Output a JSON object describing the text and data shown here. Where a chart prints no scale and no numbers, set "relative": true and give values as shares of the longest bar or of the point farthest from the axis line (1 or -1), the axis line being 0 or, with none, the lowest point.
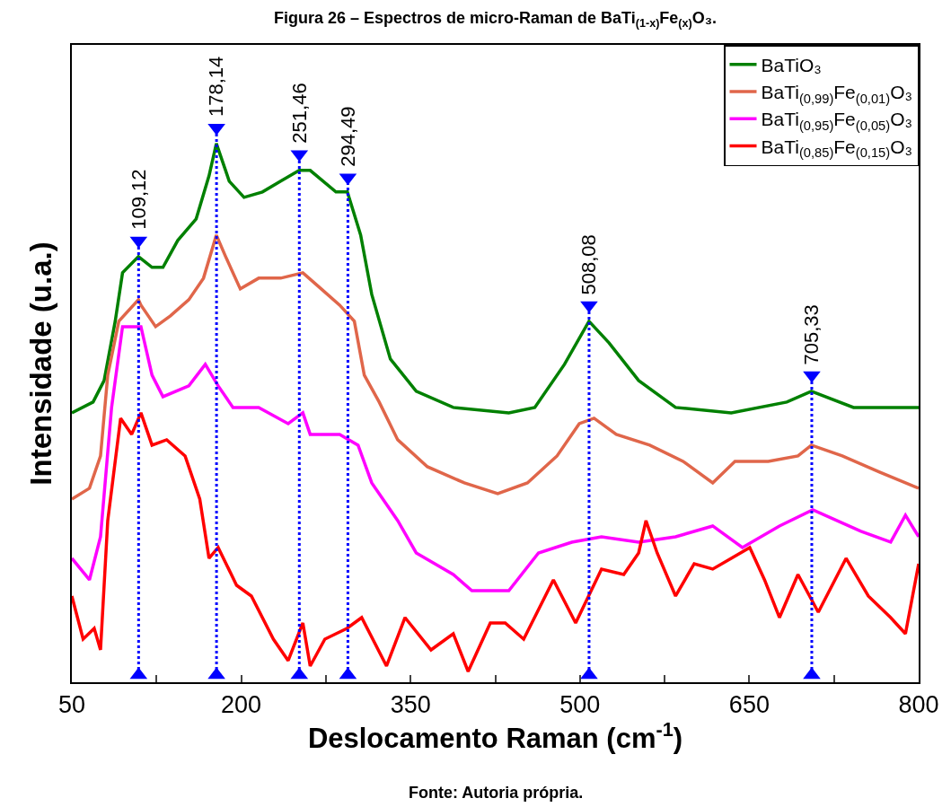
{
  "chart_data": {
    "type": "line",
    "title": "Figura 26 – Espectros de micro-Raman de BaTi$_{(1-x)}$Fe$_{(x)}$O₃.",
    "xlabel": "Deslocamento Raman (cm$^{-1}$)",
    "ylabel": "Intensidade (u.a.)",
    "relative": true,
    "xlim": [
      50,
      800
    ],
    "xticks": [
      50,
      {
        "value": 125,
        "label": null
      },
      200,
      {
        "value": 275,
        "label": null
      },
      350,
      {
        "value": 425,
        "label": null
      },
      500,
      {
        "value": 575,
        "label": null
      },
      650,
      {
        "value": 725,
        "label": null
      },
      800
    ],
    "legend": "top right",
    "marker": "none",
    "line_style": "solid",
    "series": [
      {
        "name": "BaTiO₃",
        "color": "#008000",
        "x": [
          50,
          68.8,
          78.6,
          88.4,
          94.9,
          109,
          121,
          130.7,
          143.8,
          160.1,
          171.5,
          178,
          189.4,
          202.5,
          218.8,
          235,
          251.4,
          261.1,
          283.9,
          294,
          305.8,
          315.6,
          332.1,
          355,
          387.8,
          437,
          460,
          486.3,
          508,
          525.7,
          552,
          584.7,
          634,
          683.2,
          705,
          742.3,
          800
        ],
        "values": [
          0.5,
          0.52,
          0.56,
          0.67,
          0.76,
          0.79,
          0.77,
          0.77,
          0.82,
          0.86,
          0.94,
          1.0,
          0.93,
          0.9,
          0.91,
          0.93,
          0.95,
          0.95,
          0.91,
          0.91,
          0.83,
          0.72,
          0.6,
          0.54,
          0.51,
          0.5,
          0.51,
          0.59,
          0.67,
          0.63,
          0.56,
          0.51,
          0.5,
          0.52,
          0.54,
          0.51,
          0.51
        ]
      },
      {
        "name": "BaTi$_{(0,99)}$Fe$_{(0,01)}$O₃",
        "color": "#e0664a",
        "x": [
          50,
          65.6,
          75.4,
          81.8,
          91.6,
          109,
          111.2,
          124.2,
          137.3,
          153.6,
          166.6,
          178,
          186.2,
          199.2,
          215.5,
          235,
          254.6,
          270.9,
          287.2,
          300.2,
          309,
          322.2,
          338.6,
          364.9,
          397.6,
          427.2,
          453.5,
          479.7,
          499.4,
          512.5,
          532.2,
          561.8,
          591.3,
          617.6,
          637.3,
          666.8,
          693.1,
          705,
          732.4,
          765.3,
          800
        ],
        "values": [
          0.34,
          0.36,
          0.42,
          0.57,
          0.67,
          0.71,
          0.7,
          0.66,
          0.68,
          0.71,
          0.75,
          0.83,
          0.79,
          0.73,
          0.75,
          0.75,
          0.76,
          0.73,
          0.7,
          0.67,
          0.57,
          0.52,
          0.45,
          0.4,
          0.37,
          0.35,
          0.37,
          0.42,
          0.48,
          0.49,
          0.46,
          0.44,
          0.41,
          0.37,
          0.41,
          0.41,
          0.42,
          0.44,
          0.42,
          0.39,
          0.36
        ]
      },
      {
        "name": "BaTi$_{(0,95)}$Fe$_{(0,05)}$O₃",
        "color": "#ff00ff",
        "x": [
          50,
          65.6,
          75.4,
          85.2,
          94.9,
          111.2,
          121,
          130.7,
          153.6,
          168.2,
          179.6,
          192.7,
          215.5,
          241.6,
          254.6,
          261.1,
          287.2,
          303.5,
          315.6,
          338.6,
          355,
          387.8,
          404.3,
          437,
          463.3,
          492.8,
          519.1,
          552,
          584.7,
          617.6,
          643.9,
          676.7,
          706.2,
          748.9,
          775.2,
          788.3,
          800
        ],
        "values": [
          0.23,
          0.19,
          0.27,
          0.51,
          0.66,
          0.66,
          0.57,
          0.53,
          0.55,
          0.59,
          0.55,
          0.51,
          0.51,
          0.48,
          0.5,
          0.46,
          0.46,
          0.44,
          0.37,
          0.3,
          0.24,
          0.2,
          0.17,
          0.17,
          0.24,
          0.26,
          0.27,
          0.26,
          0.27,
          0.29,
          0.25,
          0.29,
          0.32,
          0.28,
          0.26,
          0.31,
          0.27
        ]
      },
      {
        "name": "BaTi$_{(0,85)}$Fe$_{(0,15)}$O₃",
        "color": "#ff0000",
        "x": [
          50,
          60,
          69.8,
          75.4,
          81.8,
          93.2,
          103,
          111.2,
          121,
          134,
          150.3,
          163.3,
          171.5,
          179.6,
          195.9,
          209,
          228.5,
          241.6,
          254.6,
          261.1,
          274.1,
          293.7,
          306.7,
          328.7,
          345.1,
          368.1,
          387.8,
          401,
          420.6,
          433.8,
          450.2,
          476.5,
          496.2,
          519.1,
          538.8,
          552,
          558.5,
          568.4,
          584.7,
          601.2,
          617.6,
          634,
          650.4,
          663.5,
          676.7,
          693.1,
          711.1,
          735.7,
          755.4,
          775.2,
          788.3,
          800
        ],
        "values": [
          0.16,
          0.08,
          0.1,
          0.06,
          0.3,
          0.49,
          0.46,
          0.5,
          0.44,
          0.45,
          0.42,
          0.34,
          0.23,
          0.25,
          0.18,
          0.16,
          0.08,
          0.04,
          0.11,
          0.03,
          0.08,
          0.1,
          0.12,
          0.03,
          0.12,
          0.06,
          0.09,
          0.02,
          0.11,
          0.11,
          0.08,
          0.19,
          0.11,
          0.21,
          0.2,
          0.24,
          0.3,
          0.24,
          0.16,
          0.22,
          0.21,
          0.23,
          0.25,
          0.19,
          0.12,
          0.2,
          0.13,
          0.23,
          0.16,
          0.12,
          0.09,
          0.22
        ]
      }
    ],
    "ref_lines": [
      {
        "axis": "x",
        "value": 109.12,
        "label": "109,12",
        "color": "#0000ff",
        "line_style": "dotted"
      },
      {
        "axis": "x",
        "value": 178.14,
        "label": "178,14",
        "color": "#0000ff",
        "line_style": "dotted"
      },
      {
        "axis": "x",
        "value": 251.46,
        "label": "251,46",
        "color": "#0000ff",
        "line_style": "dotted"
      },
      {
        "axis": "x",
        "value": 294.49,
        "label": "294,49",
        "color": "#0000ff",
        "line_style": "dotted"
      },
      {
        "axis": "x",
        "value": 508.08,
        "label": "508,08",
        "color": "#0000ff",
        "line_style": "dotted"
      },
      {
        "axis": "x",
        "value": 705.33,
        "label": "705,33",
        "color": "#0000ff",
        "line_style": "dotted"
      }
    ],
    "annotations": [
      "Fonte: Autoria própria."
    ]
  }
}
